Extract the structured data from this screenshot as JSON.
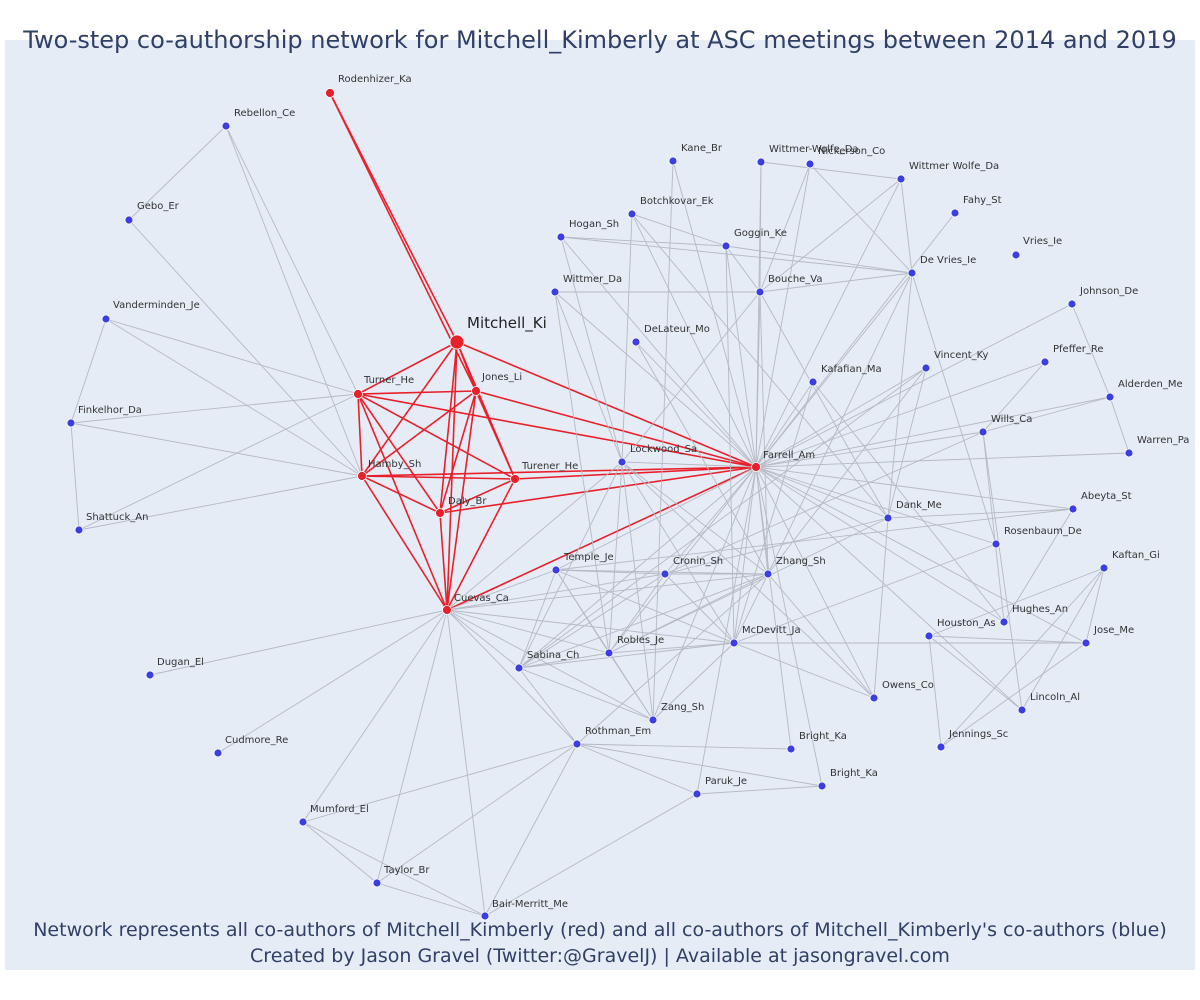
{
  "title": "Two-step co-authorship network for Mitchell_Kimberly at ASC meetings between 2014 and 2019",
  "footer": {
    "line1": "Network represents all co-authors of Mitchell_Kimberly (red) and all co-authors of Mitchell_Kimberly's co-authors (blue)",
    "line2": "Created by Jason Gravel (Twitter:@GravelJ) | Available at jasongravel.com"
  },
  "colors": {
    "background": "#e5ecf6",
    "red_node": "#e8202a",
    "blue_node": "#3b3ee0",
    "red_edge": "#e8202a",
    "grey_edge": "#b5b9c4",
    "title": "#2f3f66"
  },
  "nodes": [
    {
      "id": "Mitchell_Ki",
      "group": "focus"
    },
    {
      "id": "Rodenhizer_Ka",
      "group": "red"
    },
    {
      "id": "Turner_He",
      "group": "red"
    },
    {
      "id": "Jones_Li",
      "group": "red"
    },
    {
      "id": "Hamby_Sh",
      "group": "red"
    },
    {
      "id": "Turener_He",
      "group": "red"
    },
    {
      "id": "Daly_Br",
      "group": "red"
    },
    {
      "id": "Cuevas_Ca",
      "group": "red"
    },
    {
      "id": "Farrell_Am",
      "group": "red"
    },
    {
      "id": "Rebellon_Ce",
      "group": "blue"
    },
    {
      "id": "Gebo_Er",
      "group": "blue"
    },
    {
      "id": "Vanderminden_Je",
      "group": "blue"
    },
    {
      "id": "Finkelhor_Da",
      "group": "blue"
    },
    {
      "id": "Shattuck_An",
      "group": "blue"
    },
    {
      "id": "Dugan_El",
      "group": "blue"
    },
    {
      "id": "Cudmore_Re",
      "group": "blue"
    },
    {
      "id": "Mumford_El",
      "group": "blue"
    },
    {
      "id": "Taylor_Br",
      "group": "blue"
    },
    {
      "id": "Bair-Merritt_Me",
      "group": "blue"
    },
    {
      "id": "Kane_Br",
      "group": "blue"
    },
    {
      "id": "Wittmer-Wolfe_Da",
      "group": "blue"
    },
    {
      "id": "Nickerson_Co",
      "group": "blue"
    },
    {
      "id": "Wittmer Wolfe_Da",
      "group": "blue"
    },
    {
      "id": "Botchkovar_Ek",
      "group": "blue"
    },
    {
      "id": "Hogan_Sh",
      "group": "blue"
    },
    {
      "id": "Goggin_Ke",
      "group": "blue"
    },
    {
      "id": "Fahy_St",
      "group": "blue"
    },
    {
      "id": "De Vries_Ie",
      "group": "blue"
    },
    {
      "id": "Vries_Ie",
      "group": "blue"
    },
    {
      "id": "Wittmer_Da",
      "group": "blue"
    },
    {
      "id": "Bouche_Va",
      "group": "blue"
    },
    {
      "id": "Johnson_De",
      "group": "blue"
    },
    {
      "id": "DeLateur_Mo",
      "group": "blue"
    },
    {
      "id": "Pfeffer_Re",
      "group": "blue"
    },
    {
      "id": "Kafafian_Ma",
      "group": "blue"
    },
    {
      "id": "Vincent_Ky",
      "group": "blue"
    },
    {
      "id": "Alderden_Me",
      "group": "blue"
    },
    {
      "id": "Wills_Ca",
      "group": "blue"
    },
    {
      "id": "Lockwood_Sa",
      "group": "blue"
    },
    {
      "id": "Warren_Pa",
      "group": "blue"
    },
    {
      "id": "Abeyta_St",
      "group": "blue"
    },
    {
      "id": "Dank_Me",
      "group": "blue"
    },
    {
      "id": "Rosenbaum_De",
      "group": "blue"
    },
    {
      "id": "Temple_Je",
      "group": "blue"
    },
    {
      "id": "Cronin_Sh",
      "group": "blue"
    },
    {
      "id": "Zhang_Sh",
      "group": "blue"
    },
    {
      "id": "Kaftan_Gi",
      "group": "blue"
    },
    {
      "id": "Hughes_An",
      "group": "blue"
    },
    {
      "id": "Houston_As",
      "group": "blue"
    },
    {
      "id": "Jose_Me",
      "group": "blue"
    },
    {
      "id": "Robles_Je",
      "group": "blue"
    },
    {
      "id": "McDevitt_Ja",
      "group": "blue"
    },
    {
      "id": "Sabina_Ch",
      "group": "blue"
    },
    {
      "id": "Owens_Co",
      "group": "blue"
    },
    {
      "id": "Lincoln_Al",
      "group": "blue"
    },
    {
      "id": "Zang_Sh",
      "group": "blue"
    },
    {
      "id": "Rothman_Em",
      "group": "blue"
    },
    {
      "id": "Bright_Ka",
      "group": "blue"
    },
    {
      "id": "Jennings_Sc",
      "group": "blue"
    },
    {
      "id": "Paruk_Je",
      "group": "blue"
    },
    {
      "id": "Bright_Ka",
      "group": "blue",
      "dup": 2
    }
  ],
  "edges": [
    [
      "Mitchell_Ki",
      "Rodenhizer_Ka",
      "red"
    ],
    [
      "Mitchell_Ki",
      "Turner_He",
      "red"
    ],
    [
      "Mitchell_Ki",
      "Jones_Li",
      "red"
    ],
    [
      "Mitchell_Ki",
      "Hamby_Sh",
      "red"
    ],
    [
      "Mitchell_Ki",
      "Turener_He",
      "red"
    ],
    [
      "Mitchell_Ki",
      "Daly_Br",
      "red"
    ],
    [
      "Mitchell_Ki",
      "Cuevas_Ca",
      "red"
    ],
    [
      "Mitchell_Ki",
      "Farrell_Am",
      "red"
    ],
    [
      "Jones_Li",
      "Rodenhizer_Ka",
      "red"
    ],
    [
      "Turner_He",
      "Jones_Li",
      "red"
    ],
    [
      "Turner_He",
      "Hamby_Sh",
      "red"
    ],
    [
      "Turner_He",
      "Turener_He",
      "red"
    ],
    [
      "Turner_He",
      "Daly_Br",
      "red"
    ],
    [
      "Turner_He",
      "Cuevas_Ca",
      "red"
    ],
    [
      "Jones_Li",
      "Hamby_Sh",
      "red"
    ],
    [
      "Jones_Li",
      "Turener_He",
      "red"
    ],
    [
      "Jones_Li",
      "Daly_Br",
      "red"
    ],
    [
      "Jones_Li",
      "Cuevas_Ca",
      "red"
    ],
    [
      "Jones_Li",
      "Farrell_Am",
      "red"
    ],
    [
      "Hamby_Sh",
      "Turener_He",
      "red"
    ],
    [
      "Hamby_Sh",
      "Daly_Br",
      "red"
    ],
    [
      "Hamby_Sh",
      "Cuevas_Ca",
      "red"
    ],
    [
      "Hamby_Sh",
      "Farrell_Am",
      "red"
    ],
    [
      "Turener_He",
      "Daly_Br",
      "red"
    ],
    [
      "Turener_He",
      "Cuevas_Ca",
      "red"
    ],
    [
      "Turener_He",
      "Farrell_Am",
      "red"
    ],
    [
      "Daly_Br",
      "Cuevas_Ca",
      "red"
    ],
    [
      "Daly_Br",
      "Farrell_Am",
      "red"
    ],
    [
      "Cuevas_Ca",
      "Farrell_Am",
      "red"
    ],
    [
      "Turner_He",
      "Farrell_Am",
      "red"
    ],
    [
      "Turner_He",
      "Rebellon_Ce",
      "grey"
    ],
    [
      "Turner_He",
      "Vanderminden_Je",
      "grey"
    ],
    [
      "Turner_He",
      "Finkelhor_Da",
      "grey"
    ],
    [
      "Turner_He",
      "Shattuck_An",
      "grey"
    ],
    [
      "Rebellon_Ce",
      "Gebo_Er",
      "grey"
    ],
    [
      "Rebellon_Ce",
      "Hamby_Sh",
      "grey"
    ],
    [
      "Gebo_Er",
      "Hamby_Sh",
      "grey"
    ],
    [
      "Vanderminden_Je",
      "Finkelhor_Da",
      "grey"
    ],
    [
      "Vanderminden_Je",
      "Hamby_Sh",
      "grey"
    ],
    [
      "Finkelhor_Da",
      "Shattuck_An",
      "grey"
    ],
    [
      "Finkelhor_Da",
      "Hamby_Sh",
      "grey"
    ],
    [
      "Shattuck_An",
      "Hamby_Sh",
      "grey"
    ],
    [
      "Cuevas_Ca",
      "Dugan_El",
      "grey"
    ],
    [
      "Cuevas_Ca",
      "Cudmore_Re",
      "grey"
    ],
    [
      "Cuevas_Ca",
      "Mumford_El",
      "grey"
    ],
    [
      "Cuevas_Ca",
      "Taylor_Br",
      "grey"
    ],
    [
      "Cuevas_Ca",
      "Bair-Merritt_Me",
      "grey"
    ],
    [
      "Cuevas_Ca",
      "Temple_Je",
      "grey"
    ],
    [
      "Cuevas_Ca",
      "Cronin_Sh",
      "grey"
    ],
    [
      "Cuevas_Ca",
      "Zhang_Sh",
      "grey"
    ],
    [
      "Cuevas_Ca",
      "Robles_Je",
      "grey"
    ],
    [
      "Cuevas_Ca",
      "McDevitt_Ja",
      "grey"
    ],
    [
      "Cuevas_Ca",
      "Sabina_Ch",
      "grey"
    ],
    [
      "Cuevas_Ca",
      "Zang_Sh",
      "grey"
    ],
    [
      "Cuevas_Ca",
      "Rothman_Em",
      "grey"
    ],
    [
      "Cuevas_Ca",
      "Lockwood_Sa",
      "grey"
    ],
    [
      "Mumford_El",
      "Taylor_Br",
      "grey"
    ],
    [
      "Mumford_El",
      "Bair-Merritt_Me",
      "grey"
    ],
    [
      "Mumford_El",
      "Rothman_Em",
      "grey"
    ],
    [
      "Taylor_Br",
      "Rothman_Em",
      "grey"
    ],
    [
      "Taylor_Br",
      "Bair-Merritt_Me",
      "grey"
    ],
    [
      "Bair-Merritt_Me",
      "Rothman_Em",
      "grey"
    ],
    [
      "Bair-Merritt_Me",
      "Paruk_Je",
      "grey"
    ],
    [
      "Rothman_Em",
      "Paruk_Je",
      "grey"
    ],
    [
      "Rothman_Em",
      "Bright_Ka",
      "grey"
    ],
    [
      "Rothman_Em",
      "Bright_Ka#2",
      "grey"
    ],
    [
      "Rothman_Em",
      "Sabina_Ch",
      "grey"
    ],
    [
      "Rothman_Em",
      "Zhang_Sh",
      "grey"
    ],
    [
      "Paruk_Je",
      "Bright_Ka#2",
      "grey"
    ],
    [
      "Paruk_Je",
      "Farrell_Am",
      "grey"
    ],
    [
      "Bright_Ka",
      "Farrell_Am",
      "grey"
    ],
    [
      "Bright_Ka#2",
      "Farrell_Am",
      "grey"
    ],
    [
      "Zang_Sh",
      "Lockwood_Sa",
      "grey"
    ],
    [
      "Zang_Sh",
      "Farrell_Am",
      "grey"
    ],
    [
      "Zang_Sh",
      "Temple_Je",
      "grey"
    ],
    [
      "Zang_Sh",
      "Sabina_Ch",
      "grey"
    ],
    [
      "Farrell_Am",
      "Kane_Br",
      "grey"
    ],
    [
      "Farrell_Am",
      "Wittmer-Wolfe_Da",
      "grey"
    ],
    [
      "Farrell_Am",
      "Nickerson_Co",
      "grey"
    ],
    [
      "Farrell_Am",
      "Wittmer Wolfe_Da",
      "grey"
    ],
    [
      "Farrell_Am",
      "Botchkovar_Ek",
      "grey"
    ],
    [
      "Farrell_Am",
      "Hogan_Sh",
      "grey"
    ],
    [
      "Farrell_Am",
      "Goggin_Ke",
      "grey"
    ],
    [
      "Farrell_Am",
      "Fahy_St",
      "grey"
    ],
    [
      "Farrell_Am",
      "De Vries_Ie",
      "grey"
    ],
    [
      "Farrell_Am",
      "Wittmer_Da",
      "grey"
    ],
    [
      "Farrell_Am",
      "Bouche_Va",
      "grey"
    ],
    [
      "Farrell_Am",
      "Johnson_De",
      "grey"
    ],
    [
      "Farrell_Am",
      "Pfeffer_Re",
      "grey"
    ],
    [
      "Farrell_Am",
      "Kafafian_Ma",
      "grey"
    ],
    [
      "Farrell_Am",
      "Vincent_Ky",
      "grey"
    ],
    [
      "Farrell_Am",
      "Alderden_Me",
      "grey"
    ],
    [
      "Farrell_Am",
      "Wills_Ca",
      "grey"
    ],
    [
      "Farrell_Am",
      "Lockwood_Sa",
      "grey"
    ],
    [
      "Farrell_Am",
      "Warren_Pa",
      "grey"
    ],
    [
      "Farrell_Am",
      "Abeyta_St",
      "grey"
    ],
    [
      "Farrell_Am",
      "Dank_Me",
      "grey"
    ],
    [
      "Farrell_Am",
      "Rosenbaum_De",
      "grey"
    ],
    [
      "Farrell_Am",
      "Temple_Je",
      "grey"
    ],
    [
      "Farrell_Am",
      "Cronin_Sh",
      "grey"
    ],
    [
      "Farrell_Am",
      "Zhang_Sh",
      "grey"
    ],
    [
      "Farrell_Am",
      "Hughes_An",
      "grey"
    ],
    [
      "Farrell_Am",
      "Robles_Je",
      "grey"
    ],
    [
      "Farrell_Am",
      "McDevitt_Ja",
      "grey"
    ],
    [
      "Farrell_Am",
      "Sabina_Ch",
      "grey"
    ],
    [
      "Farrell_Am",
      "Owens_Co",
      "grey"
    ],
    [
      "Farrell_Am",
      "Lincoln_Al",
      "grey"
    ],
    [
      "Farrell_Am",
      "Jose_Me",
      "grey"
    ],
    [
      "Farrell_Am",
      "DeLateur_Mo",
      "grey"
    ],
    [
      "Wittmer-Wolfe_Da",
      "Bouche_Va",
      "grey"
    ],
    [
      "Wittmer-Wolfe_Da",
      "Wittmer Wolfe_Da",
      "grey"
    ],
    [
      "Nickerson_Co",
      "De Vries_Ie",
      "grey"
    ],
    [
      "Nickerson_Co",
      "Bouche_Va",
      "grey"
    ],
    [
      "Wittmer Wolfe_Da",
      "De Vries_Ie",
      "grey"
    ],
    [
      "Wittmer Wolfe_Da",
      "Bouche_Va",
      "grey"
    ],
    [
      "Botchkovar_Ek",
      "Goggin_Ke",
      "grey"
    ],
    [
      "Botchkovar_Ek",
      "Lockwood_Sa",
      "grey"
    ],
    [
      "Botchkovar_Ek",
      "Dank_Me",
      "grey"
    ],
    [
      "Hogan_Sh",
      "De Vries_Ie",
      "grey"
    ],
    [
      "Hogan_Sh",
      "Lockwood_Sa",
      "grey"
    ],
    [
      "Hogan_Sh",
      "Goggin_Ke",
      "grey"
    ],
    [
      "Goggin_Ke",
      "De Vries_Ie",
      "grey"
    ],
    [
      "Goggin_Ke",
      "McDevitt_Ja",
      "grey"
    ],
    [
      "Goggin_Ke",
      "Bouche_Va",
      "grey"
    ],
    [
      "Wittmer_Da",
      "Bouche_Va",
      "grey"
    ],
    [
      "Wittmer_Da",
      "Lockwood_Sa",
      "grey"
    ],
    [
      "Wittmer_Da",
      "Robles_Je",
      "grey"
    ],
    [
      "Bouche_Va",
      "De Vries_Ie",
      "grey"
    ],
    [
      "Bouche_Va",
      "Lockwood_Sa",
      "grey"
    ],
    [
      "Bouche_Va",
      "Dank_Me",
      "grey"
    ],
    [
      "Bouche_Va",
      "Zhang_Sh",
      "grey"
    ],
    [
      "De Vries_Ie",
      "Dank_Me",
      "grey"
    ],
    [
      "De Vries_Ie",
      "Zhang_Sh",
      "grey"
    ],
    [
      "De Vries_Ie",
      "Rosenbaum_De",
      "grey"
    ],
    [
      "DeLateur_Mo",
      "Zhang_Sh",
      "grey"
    ],
    [
      "Kafafian_Ma",
      "Hughes_An",
      "grey"
    ],
    [
      "Kafafian_Ma",
      "McDevitt_Ja",
      "grey"
    ],
    [
      "Vincent_Ky",
      "Sabina_Ch",
      "grey"
    ],
    [
      "Vincent_Ky",
      "Dank_Me",
      "grey"
    ],
    [
      "Vincent_Ky",
      "Zhang_Sh",
      "grey"
    ],
    [
      "Wills_Ca",
      "Cronin_Sh",
      "grey"
    ],
    [
      "Wills_Ca",
      "Lincoln_Al",
      "grey"
    ],
    [
      "Wills_Ca",
      "Hughes_An",
      "grey"
    ],
    [
      "Wills_Ca",
      "Pfeffer_Re",
      "grey"
    ],
    [
      "Wills_Ca",
      "Alderden_Me",
      "grey"
    ],
    [
      "Johnson_De",
      "Alderden_Me",
      "grey"
    ],
    [
      "Alderden_Me",
      "Warren_Pa",
      "grey"
    ],
    [
      "Abeyta_St",
      "Dank_Me",
      "grey"
    ],
    [
      "Abeyta_St",
      "Hughes_An",
      "grey"
    ],
    [
      "Abeyta_St",
      "Temple_Je",
      "grey"
    ],
    [
      "Dank_Me",
      "Owens_Co",
      "grey"
    ],
    [
      "Dank_Me",
      "Robles_Je",
      "grey"
    ],
    [
      "Dank_Me",
      "Cronin_Sh",
      "grey"
    ],
    [
      "Rosenbaum_De",
      "McDevitt_Ja",
      "grey"
    ],
    [
      "Kaftan_Gi",
      "Jose_Me",
      "grey"
    ],
    [
      "Kaftan_Gi",
      "Houston_As",
      "grey"
    ],
    [
      "Kaftan_Gi",
      "Lincoln_Al",
      "grey"
    ],
    [
      "Kaftan_Gi",
      "Jennings_Sc",
      "grey"
    ],
    [
      "Houston_As",
      "Jose_Me",
      "grey"
    ],
    [
      "Houston_As",
      "Lincoln_Al",
      "grey"
    ],
    [
      "Houston_As",
      "Jennings_Sc",
      "grey"
    ],
    [
      "Jose_Me",
      "Jennings_Sc",
      "grey"
    ],
    [
      "Jose_Me",
      "McDevitt_Ja",
      "grey"
    ],
    [
      "Temple_Je",
      "Robles_Je",
      "grey"
    ],
    [
      "Temple_Je",
      "Zhang_Sh",
      "grey"
    ],
    [
      "Temple_Je",
      "Cronin_Sh",
      "grey"
    ],
    [
      "Temple_Je",
      "McDevitt_Ja",
      "grey"
    ],
    [
      "Temple_Je",
      "Sabina_Ch",
      "grey"
    ],
    [
      "Cronin_Sh",
      "Zhang_Sh",
      "grey"
    ],
    [
      "Cronin_Sh",
      "Robles_Je",
      "grey"
    ],
    [
      "Cronin_Sh",
      "Sabina_Ch",
      "grey"
    ],
    [
      "Cronin_Sh",
      "McDevitt_Ja",
      "grey"
    ],
    [
      "Zhang_Sh",
      "McDevitt_Ja",
      "grey"
    ],
    [
      "Zhang_Sh",
      "Robles_Je",
      "grey"
    ],
    [
      "Zhang_Sh",
      "Owens_Co",
      "grey"
    ],
    [
      "Zhang_Sh",
      "Sabina_Ch",
      "grey"
    ],
    [
      "Robles_Je",
      "Sabina_Ch",
      "grey"
    ],
    [
      "Robles_Je",
      "McDevitt_Ja",
      "grey"
    ],
    [
      "Robles_Je",
      "Zang_Sh",
      "grey"
    ],
    [
      "McDevitt_Ja",
      "Sabina_Ch",
      "grey"
    ],
    [
      "McDevitt_Ja",
      "Owens_Co",
      "grey"
    ],
    [
      "McDevitt_Ja",
      "Zang_Sh",
      "grey"
    ],
    [
      "Sabina_Ch",
      "Lockwood_Sa",
      "grey"
    ],
    [
      "Lockwood_Sa",
      "McDevitt_Ja",
      "grey"
    ],
    [
      "Lockwood_Sa",
      "Zhang_Sh",
      "grey"
    ],
    [
      "Lockwood_Sa",
      "Robles_Je",
      "grey"
    ],
    [
      "Lockwood_Sa",
      "Owens_Co",
      "grey"
    ],
    [
      "Kane_Br",
      "Zang_Sh",
      "grey"
    ]
  ]
}
